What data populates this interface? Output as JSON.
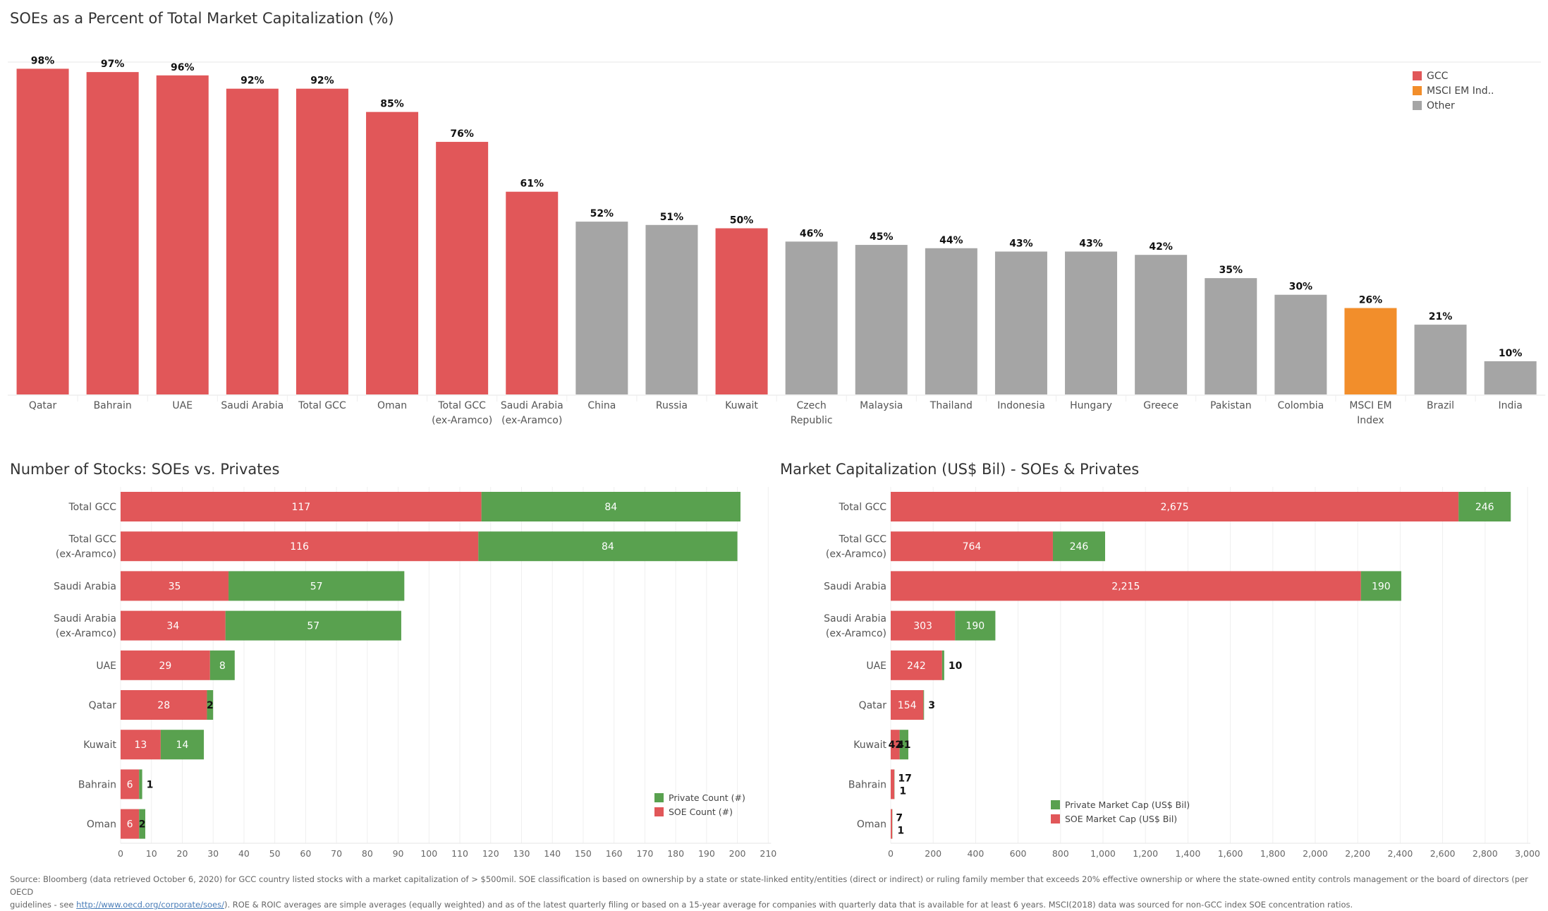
{
  "colors": {
    "gcc": "#e15759",
    "msci": "#f28e2b",
    "other": "#a5a5a5",
    "soe": "#e15759",
    "private": "#59a14f",
    "grid": "#efefef"
  },
  "chart_data": [
    {
      "id": "soe_pct",
      "type": "bar",
      "title": "SOEs as a Percent of Total Market Capitalization (%)",
      "xlabel": "",
      "ylabel": "",
      "ylim": [
        0,
        100
      ],
      "legend_position": "top-right",
      "legend": [
        {
          "label": "GCC",
          "group": "gcc"
        },
        {
          "label": "MSCI EM Ind..",
          "group": "msci"
        },
        {
          "label": "Other",
          "group": "other"
        }
      ],
      "categories": [
        "Qatar",
        "Bahrain",
        "UAE",
        "Saudi Arabia",
        "Total GCC",
        "Oman",
        "Total GCC (ex-Aramco)",
        "Saudi Arabia (ex-Aramco)",
        "China",
        "Russia",
        "Kuwait",
        "Czech Republic",
        "Malaysia",
        "Thailand",
        "Indonesia",
        "Hungary",
        "Greece",
        "Pakistan",
        "Colombia",
        "MSCI EM Index",
        "Brazil",
        "India"
      ],
      "category_lines": [
        [
          "Qatar"
        ],
        [
          "Bahrain"
        ],
        [
          "UAE"
        ],
        [
          "Saudi Arabia"
        ],
        [
          "Total GCC"
        ],
        [
          "Oman"
        ],
        [
          "Total GCC",
          "(ex-Aramco)"
        ],
        [
          "Saudi Arabia",
          "(ex-Aramco)"
        ],
        [
          "China"
        ],
        [
          "Russia"
        ],
        [
          "Kuwait"
        ],
        [
          "Czech",
          "Republic"
        ],
        [
          "Malaysia"
        ],
        [
          "Thailand"
        ],
        [
          "Indonesia"
        ],
        [
          "Hungary"
        ],
        [
          "Greece"
        ],
        [
          "Pakistan"
        ],
        [
          "Colombia"
        ],
        [
          "MSCI EM",
          "Index"
        ],
        [
          "Brazil"
        ],
        [
          "India"
        ]
      ],
      "values": [
        98,
        97,
        96,
        92,
        92,
        85,
        76,
        61,
        52,
        51,
        50,
        46,
        45,
        44,
        43,
        43,
        42,
        35,
        30,
        26,
        21,
        10
      ],
      "labels": [
        "98%",
        "97%",
        "96%",
        "92%",
        "92%",
        "85%",
        "76%",
        "61%",
        "52%",
        "51%",
        "50%",
        "46%",
        "45%",
        "44%",
        "43%",
        "43%",
        "42%",
        "35%",
        "30%",
        "26%",
        "21%",
        "10%"
      ],
      "groups": [
        "gcc",
        "gcc",
        "gcc",
        "gcc",
        "gcc",
        "gcc",
        "gcc",
        "gcc",
        "other",
        "other",
        "gcc",
        "other",
        "other",
        "other",
        "other",
        "other",
        "other",
        "other",
        "other",
        "msci",
        "other",
        "other"
      ]
    },
    {
      "id": "stock_count",
      "type": "bar",
      "orientation": "horizontal-stacked",
      "title": "Number of Stocks: SOEs vs. Privates",
      "xlabel": "",
      "ylabel": "",
      "xlim": [
        0,
        210
      ],
      "xticks": [
        0,
        10,
        20,
        30,
        40,
        50,
        60,
        70,
        80,
        90,
        100,
        110,
        120,
        130,
        140,
        150,
        160,
        170,
        180,
        190,
        200,
        210
      ],
      "grid": true,
      "legend_position": "bottom-right",
      "categories": [
        "Total GCC",
        "Total GCC (ex-Aramco)",
        "Saudi Arabia",
        "Saudi Arabia (ex-Aramco)",
        "UAE",
        "Qatar",
        "Kuwait",
        "Bahrain",
        "Oman"
      ],
      "category_lines": [
        [
          "Total GCC"
        ],
        [
          "Total GCC",
          "(ex-Aramco)"
        ],
        [
          "Saudi Arabia"
        ],
        [
          "Saudi Arabia",
          "(ex-Aramco)"
        ],
        [
          "UAE"
        ],
        [
          "Qatar"
        ],
        [
          "Kuwait"
        ],
        [
          "Bahrain"
        ],
        [
          "Oman"
        ]
      ],
      "series": [
        {
          "name": "SOE Count (#)",
          "key": "soe",
          "values": [
            117,
            116,
            35,
            34,
            29,
            28,
            13,
            6,
            6
          ]
        },
        {
          "name": "Private Count (#)",
          "key": "private",
          "values": [
            84,
            84,
            57,
            57,
            8,
            2,
            14,
            1,
            2
          ]
        }
      ],
      "legend": [
        "Private Count (#)",
        "SOE Count (#)"
      ]
    },
    {
      "id": "market_cap",
      "type": "bar",
      "orientation": "horizontal-stacked",
      "title": "Market Capitalization (US$ Bil) - SOEs & Privates",
      "xlabel": "",
      "ylabel": "",
      "xlim": [
        0,
        3000
      ],
      "xticks": [
        0,
        200,
        400,
        600,
        800,
        1000,
        1200,
        1400,
        1600,
        1800,
        2000,
        2200,
        2400,
        2600,
        2800,
        3000
      ],
      "xtick_labels": [
        "0",
        "200",
        "400",
        "600",
        "800",
        "1,000",
        "1,200",
        "1,400",
        "1,600",
        "1,800",
        "2,000",
        "2,200",
        "2,400",
        "2,600",
        "2,800",
        "3,000"
      ],
      "grid": true,
      "legend_position": "bottom-right",
      "categories": [
        "Total GCC",
        "Total GCC (ex-Aramco)",
        "Saudi Arabia",
        "Saudi Arabia (ex-Aramco)",
        "UAE",
        "Qatar",
        "Kuwait",
        "Bahrain",
        "Oman"
      ],
      "category_lines": [
        [
          "Total GCC"
        ],
        [
          "Total GCC",
          "(ex-Aramco)"
        ],
        [
          "Saudi Arabia"
        ],
        [
          "Saudi Arabia",
          "(ex-Aramco)"
        ],
        [
          "UAE"
        ],
        [
          "Qatar"
        ],
        [
          "Kuwait"
        ],
        [
          "Bahrain"
        ],
        [
          "Oman"
        ]
      ],
      "series": [
        {
          "name": "SOE Market Cap (US$ Bil)",
          "key": "soe",
          "values": [
            2675,
            764,
            2215,
            303,
            242,
            154,
            42,
            17,
            7
          ],
          "labels": [
            "2,675",
            "764",
            "2,215",
            "303",
            "242",
            "154",
            "42",
            "17",
            "7"
          ]
        },
        {
          "name": "Private Market Cap (US$ Bil)",
          "key": "private",
          "values": [
            246,
            246,
            190,
            190,
            10,
            3,
            41,
            1,
            1
          ],
          "labels": [
            "246",
            "246",
            "190",
            "190",
            "10",
            "3",
            "41",
            "1",
            "1"
          ]
        }
      ],
      "legend": [
        "Private Market Cap (US$ Bil)",
        "SOE Market Cap (US$ Bil)"
      ]
    }
  ],
  "footnote": {
    "line1": "Source: Bloomberg (data retrieved October 6, 2020) for GCC country listed stocks with a market capitalization of > $500mil. SOE classification is based on ownership by a state or state-linked entity/entities (direct or indirect) or ruling family member that exceeds 20% effective ownership or where the state-owned entity controls management or the board of directors (per OECD",
    "line2_prefix": "guidelines - see ",
    "link": "http://www.oecd.org/corporate/soes/",
    "line2_suffix": "). ROE & ROIC averages are simple averages (equally weighted) and as of the latest quarterly filing or based on a 15-year average for companies with quarterly data that is available for at least 6 years. MSCI(2018)  data was sourced for non-GCC index SOE concentration ratios."
  }
}
